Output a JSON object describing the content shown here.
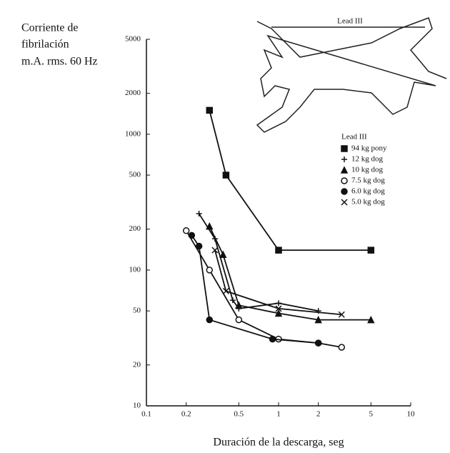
{
  "chart_data": {
    "type": "line",
    "ylabel": [
      "Corriente de",
      "fibrilación",
      "m.A. rms. 60 Hz"
    ],
    "xlabel": "Duración de la descarga, seg",
    "illustration_label": "Lead III",
    "legend_title": "Lead III",
    "xscale": "log",
    "yscale": "log",
    "xlim": [
      0.1,
      10
    ],
    "xticks": [
      0.1,
      0.2,
      0.5,
      1,
      2,
      5,
      10
    ],
    "ylim": [
      10,
      5000
    ],
    "yticks": [
      10,
      20,
      50,
      100,
      200,
      500,
      1000,
      2000,
      5000
    ],
    "series": [
      {
        "name": "94 kg pony",
        "color": "#111111",
        "marker": "square",
        "x": [
          0.3,
          0.4,
          1,
          5
        ],
        "values": [
          1500,
          500,
          140,
          140
        ]
      },
      {
        "name": "12 kg dog",
        "color": "#111111",
        "marker": "plus",
        "x": [
          0.25,
          0.33,
          0.45,
          0.5,
          1,
          2
        ],
        "values": [
          260,
          170,
          60,
          52,
          57,
          50
        ]
      },
      {
        "name": "10 kg dog",
        "color": "#111111",
        "marker": "triangle",
        "x": [
          0.3,
          0.38,
          0.5,
          1,
          2,
          5
        ],
        "values": [
          210,
          130,
          55,
          48,
          43,
          43
        ]
      },
      {
        "name": "7.5 kg dog",
        "color": "#111111",
        "marker": "open-circle",
        "x": [
          0.2,
          0.3,
          0.5,
          1,
          2,
          3
        ],
        "values": [
          195,
          100,
          43,
          31,
          29,
          27
        ]
      },
      {
        "name": "6.0 kg dog",
        "color": "#111111",
        "marker": "circle",
        "x": [
          0.22,
          0.25,
          0.3,
          0.9,
          2
        ],
        "values": [
          180,
          150,
          43,
          31,
          29
        ]
      },
      {
        "name": "5.0 kg dog",
        "color": "#111111",
        "marker": "cross",
        "x": [
          0.33,
          0.4,
          1,
          3
        ],
        "values": [
          140,
          70,
          52,
          47
        ]
      }
    ]
  }
}
